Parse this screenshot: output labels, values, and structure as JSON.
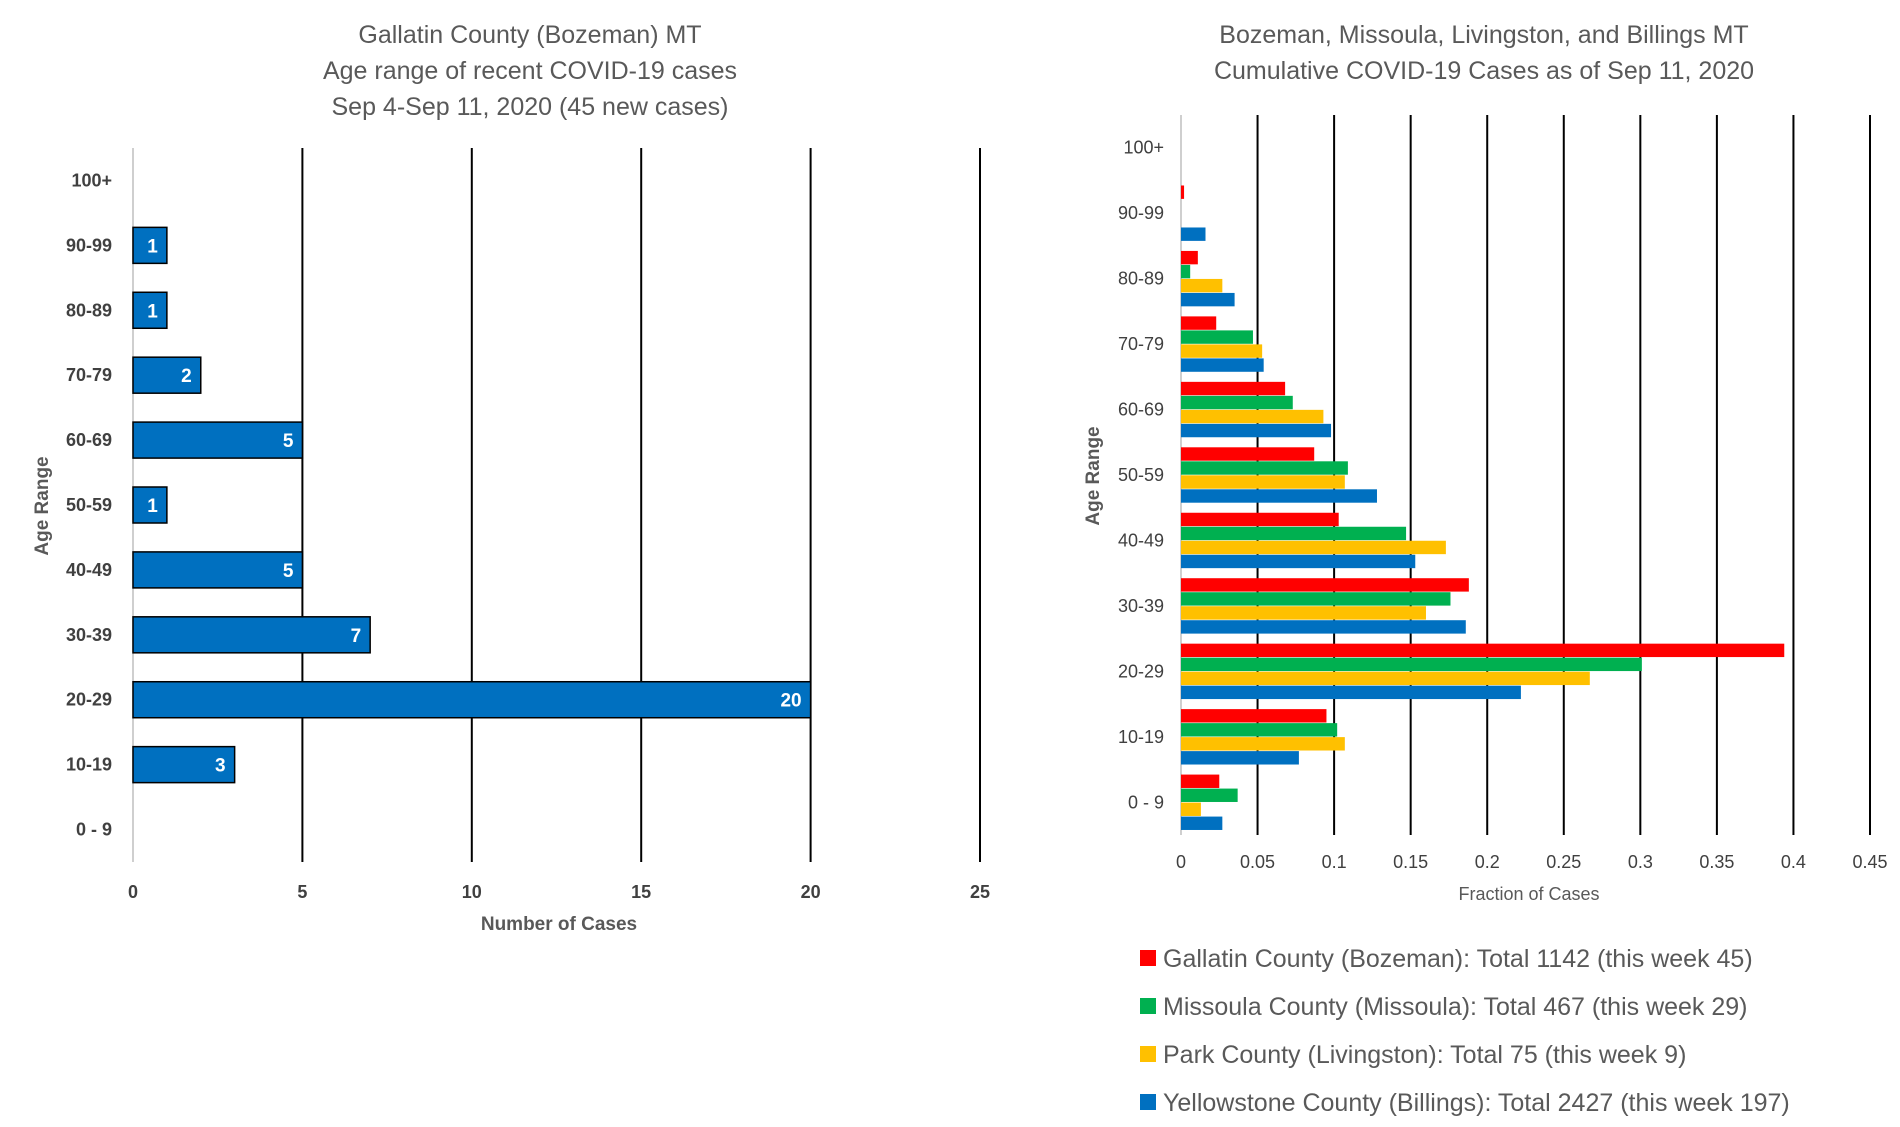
{
  "chart_data": [
    {
      "type": "bar",
      "orientation": "horizontal",
      "title": [
        "Gallatin County (Bozeman) MT",
        "Age range of recent COVID-19 cases",
        "Sep 4-Sep 11, 2020 (45 new cases)"
      ],
      "xlabel": "Number of Cases",
      "ylabel": "Age Range",
      "categories": [
        "0 - 9",
        "10-19",
        "20-29",
        "30-39",
        "40-49",
        "50-59",
        "60-69",
        "70-79",
        "80-89",
        "90-99",
        "100+"
      ],
      "values": [
        0,
        3,
        20,
        7,
        5,
        1,
        5,
        2,
        1,
        1,
        0
      ],
      "data_labels": [
        "",
        "3",
        "20",
        "7",
        "5",
        "1",
        "5",
        "2",
        "1",
        "1",
        ""
      ],
      "xlim": [
        0,
        25
      ],
      "xticks": [
        0,
        5,
        10,
        15,
        20,
        25
      ],
      "xtick_labels": [
        "0",
        "5",
        "10",
        "15",
        "20",
        "25"
      ],
      "color": "#0070C0",
      "grid": "vertical"
    },
    {
      "type": "bar",
      "orientation": "horizontal",
      "title": [
        "Bozeman, Missoula, Livingston, and Billings MT",
        "Cumulative COVID-19 Cases as of Sep 11, 2020"
      ],
      "xlabel": "Fraction of Cases",
      "ylabel": "Age Range",
      "categories": [
        "0 - 9",
        "10-19",
        "20-29",
        "30-39",
        "40-49",
        "50-59",
        "60-69",
        "70-79",
        "80-89",
        "90-99",
        "100+"
      ],
      "xlim": [
        0,
        0.45
      ],
      "xticks": [
        0,
        0.05,
        0.1,
        0.15,
        0.2,
        0.25,
        0.3,
        0.35,
        0.4,
        0.45
      ],
      "xtick_labels": [
        "0",
        "0.05",
        "0.1",
        "0.15",
        "0.2",
        "0.25",
        "0.3",
        "0.35",
        "0.4",
        "0.45"
      ],
      "grid": "vertical",
      "legend_position": "bottom",
      "series": [
        {
          "name": "Gallatin County (Bozeman): Total 1142 (this week 45)",
          "color": "#FF0000",
          "values": [
            0.025,
            0.095,
            0.394,
            0.188,
            0.103,
            0.087,
            0.068,
            0.023,
            0.011,
            0.002,
            0
          ]
        },
        {
          "name": "Missoula County (Missoula): Total 467 (this week 29)",
          "color": "#00B050",
          "values": [
            0.037,
            0.102,
            0.301,
            0.176,
            0.147,
            0.109,
            0.073,
            0.047,
            0.006,
            0,
            0
          ]
        },
        {
          "name": "Park County (Livingston): Total 75 (this week 9)",
          "color": "#FFC000",
          "values": [
            0.013,
            0.107,
            0.267,
            0.16,
            0.173,
            0.107,
            0.093,
            0.053,
            0.027,
            0,
            0
          ]
        },
        {
          "name": "Yellowstone County (Billings): Total 2427 (this week 197)",
          "color": "#0070C0",
          "values": [
            0.027,
            0.077,
            0.222,
            0.186,
            0.153,
            0.128,
            0.098,
            0.054,
            0.035,
            0.016,
            0
          ]
        }
      ]
    }
  ]
}
